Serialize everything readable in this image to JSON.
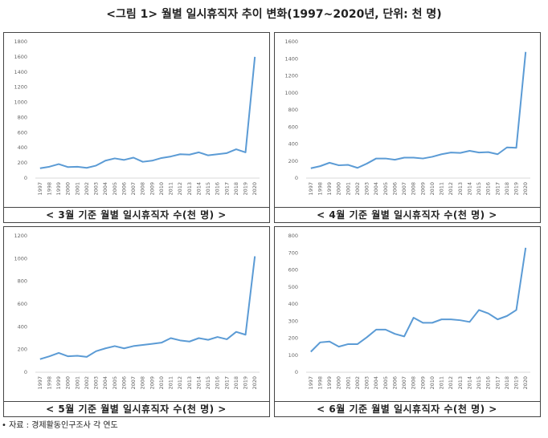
{
  "title": "<그림 1> 월별 일시휴직자 추이 변화(1997~2020년, 단위: 천 명)",
  "source": "• 자료 : 경제활동인구조사 각 연도",
  "chart_data": [
    {
      "type": "line",
      "title": "< 3월 기준 월별 일시휴직자 수(천 명) >",
      "categories": [
        "1997",
        "1998",
        "1999",
        "2000",
        "2001",
        "2002",
        "2003",
        "2004",
        "2005",
        "2006",
        "2007",
        "2008",
        "2009",
        "2010",
        "2011",
        "2012",
        "2013",
        "2014",
        "2015",
        "2016",
        "2017",
        "2018",
        "2019",
        "2020"
      ],
      "values": [
        130,
        150,
        185,
        145,
        150,
        135,
        165,
        230,
        260,
        240,
        270,
        215,
        230,
        265,
        285,
        315,
        310,
        340,
        300,
        315,
        330,
        380,
        340,
        1600
      ],
      "color": "#5b9bd5",
      "ylim": [
        0,
        1800
      ],
      "yticks": [
        0,
        200,
        400,
        600,
        800,
        1000,
        1200,
        1400,
        1600,
        1800
      ]
    },
    {
      "type": "line",
      "title": "< 4월 기준 월별 일시휴직자 수(천 명) >",
      "categories": [
        "1997",
        "1998",
        "1999",
        "2000",
        "2001",
        "2002",
        "2003",
        "2004",
        "2005",
        "2006",
        "2007",
        "2008",
        "2009",
        "2010",
        "2011",
        "2012",
        "2013",
        "2014",
        "2015",
        "2016",
        "2017",
        "2018",
        "2019",
        "2020"
      ],
      "values": [
        115,
        140,
        180,
        150,
        155,
        120,
        170,
        230,
        230,
        215,
        240,
        240,
        230,
        250,
        280,
        300,
        295,
        320,
        300,
        305,
        280,
        360,
        355,
        1480
      ],
      "color": "#5b9bd5",
      "ylim": [
        0,
        1600
      ],
      "yticks": [
        0,
        200,
        400,
        600,
        800,
        1000,
        1200,
        1400,
        1600
      ]
    },
    {
      "type": "line",
      "title": "< 5월 기준 월별 일시휴직자 수(천 명) >",
      "categories": [
        "1997",
        "1998",
        "1999",
        "2000",
        "2001",
        "2002",
        "2003",
        "2004",
        "2005",
        "2006",
        "2007",
        "2008",
        "2009",
        "2010",
        "2011",
        "2012",
        "2013",
        "2014",
        "2015",
        "2016",
        "2017",
        "2018",
        "2019",
        "2020"
      ],
      "values": [
        115,
        140,
        170,
        140,
        145,
        135,
        185,
        210,
        230,
        210,
        230,
        240,
        250,
        260,
        300,
        280,
        270,
        300,
        285,
        310,
        290,
        355,
        330,
        1020
      ],
      "color": "#5b9bd5",
      "ylim": [
        0,
        1200
      ],
      "yticks": [
        0,
        200,
        400,
        600,
        800,
        1000,
        1200
      ]
    },
    {
      "type": "line",
      "title": "< 6월 기준 월별 일시휴직자 수(천 명) >",
      "categories": [
        "1997",
        "1998",
        "1999",
        "2000",
        "2001",
        "2002",
        "2003",
        "2004",
        "2005",
        "2006",
        "2007",
        "2008",
        "2009",
        "2010",
        "2011",
        "2012",
        "2013",
        "2014",
        "2015",
        "2016",
        "2017",
        "2018",
        "2019",
        "2020"
      ],
      "values": [
        120,
        175,
        180,
        150,
        165,
        165,
        205,
        250,
        250,
        225,
        210,
        320,
        290,
        290,
        310,
        310,
        305,
        295,
        365,
        345,
        310,
        330,
        365,
        730
      ],
      "color": "#5b9bd5",
      "ylim": [
        0,
        800
      ],
      "yticks": [
        0,
        100,
        200,
        300,
        400,
        500,
        600,
        700,
        800
      ]
    }
  ]
}
